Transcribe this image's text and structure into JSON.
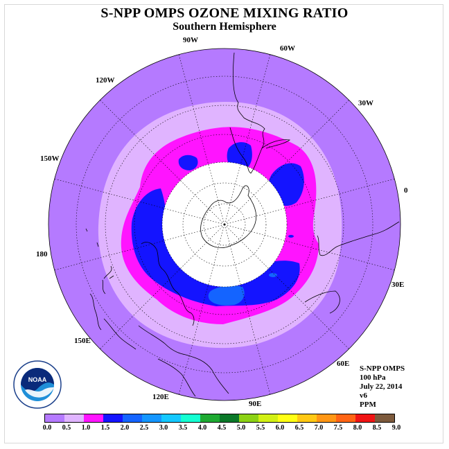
{
  "title": "S-NPP OMPS OZONE MIXING RATIO",
  "subtitle": "Southern Hemisphere",
  "longitude_labels": {
    "90W": "90W",
    "60W": "60W",
    "30W": "30W",
    "120W": "120W",
    "150W": "150W",
    "0": "0",
    "180": "180",
    "30E": "30E",
    "60E": "60E",
    "90E": "90E",
    "120E": "120E",
    "150E": "150E"
  },
  "info": {
    "instrument": "S-NPP OMPS",
    "level": "100 hPa",
    "date": "July 22, 2014",
    "version": "v6",
    "units": "PPM"
  },
  "logo": {
    "text": "NOAA",
    "icon": "noaa-logo-icon"
  },
  "colorbar": {
    "colors": [
      "#b57aff",
      "#e0b4ff",
      "#ff14ff",
      "#1414ff",
      "#1464ff",
      "#1496ff",
      "#14c8ff",
      "#14ffd2",
      "#1eaa32",
      "#0a7828",
      "#8cd214",
      "#d2f014",
      "#ffff14",
      "#ffc814",
      "#ff9614",
      "#ff6414",
      "#f01414",
      "#7d5a3c"
    ],
    "labels": [
      "0.0",
      "0.5",
      "1.0",
      "1.5",
      "2.0",
      "2.5",
      "3.0",
      "3.5",
      "4.0",
      "4.5",
      "5.0",
      "5.5",
      "6.0",
      "6.5",
      "7.0",
      "7.5",
      "8.0",
      "8.5",
      "9.0"
    ]
  },
  "map_colors": {
    "background": "#b57aff",
    "band_0_5_1_0": "#e0b4ff",
    "band_1_0_1_5": "#ff14ff",
    "band_1_5_2_0": "#1414ff",
    "band_2_0_2_5": "#1464ff",
    "polar_cap": "#ffffff"
  }
}
